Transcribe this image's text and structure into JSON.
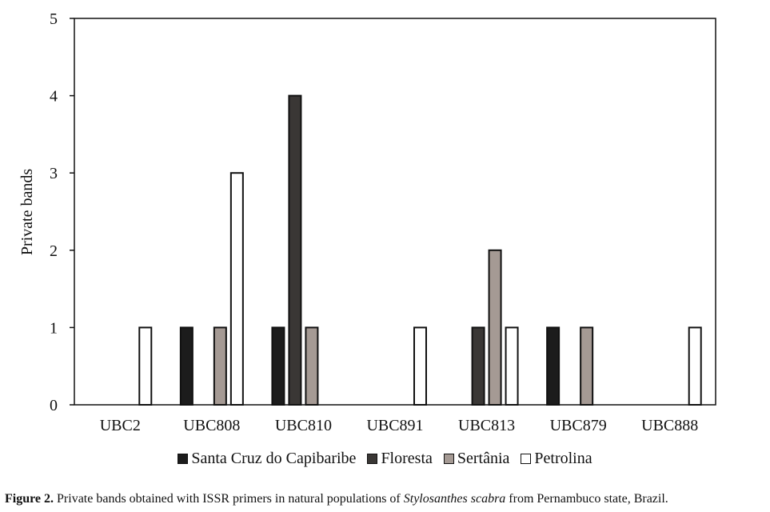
{
  "chart_data": {
    "type": "bar",
    "categories": [
      "UBC2",
      "UBC808",
      "UBC810",
      "UBC891",
      "UBC813",
      "UBC879",
      "UBC888"
    ],
    "series": [
      {
        "name": "Santa Cruz do Capibaribe",
        "color": "#1c1c1c",
        "values": [
          0,
          1,
          1,
          0,
          0,
          1,
          0
        ]
      },
      {
        "name": "Floresta",
        "color": "#3a3735",
        "values": [
          0,
          0,
          4,
          0,
          1,
          0,
          0
        ]
      },
      {
        "name": "Sertânia",
        "color": "#a59a94",
        "values": [
          0,
          1,
          1,
          0,
          2,
          1,
          0
        ]
      },
      {
        "name": "Petrolina",
        "color": "#ffffff",
        "values": [
          1,
          3,
          0,
          1,
          1,
          0,
          1
        ]
      }
    ],
    "ylabel": "Private bands",
    "ylim": [
      0,
      5
    ],
    "yticks": [
      0,
      1,
      2,
      3,
      4,
      5
    ],
    "grid": false,
    "legend": "bottom"
  },
  "caption": {
    "label": "Figure 2.",
    "text_before": " Private bands obtained with ISSR primers in natural populations of ",
    "species": "Stylosanthes scabra",
    "text_after": " from Pernambuco state, Brazil."
  }
}
